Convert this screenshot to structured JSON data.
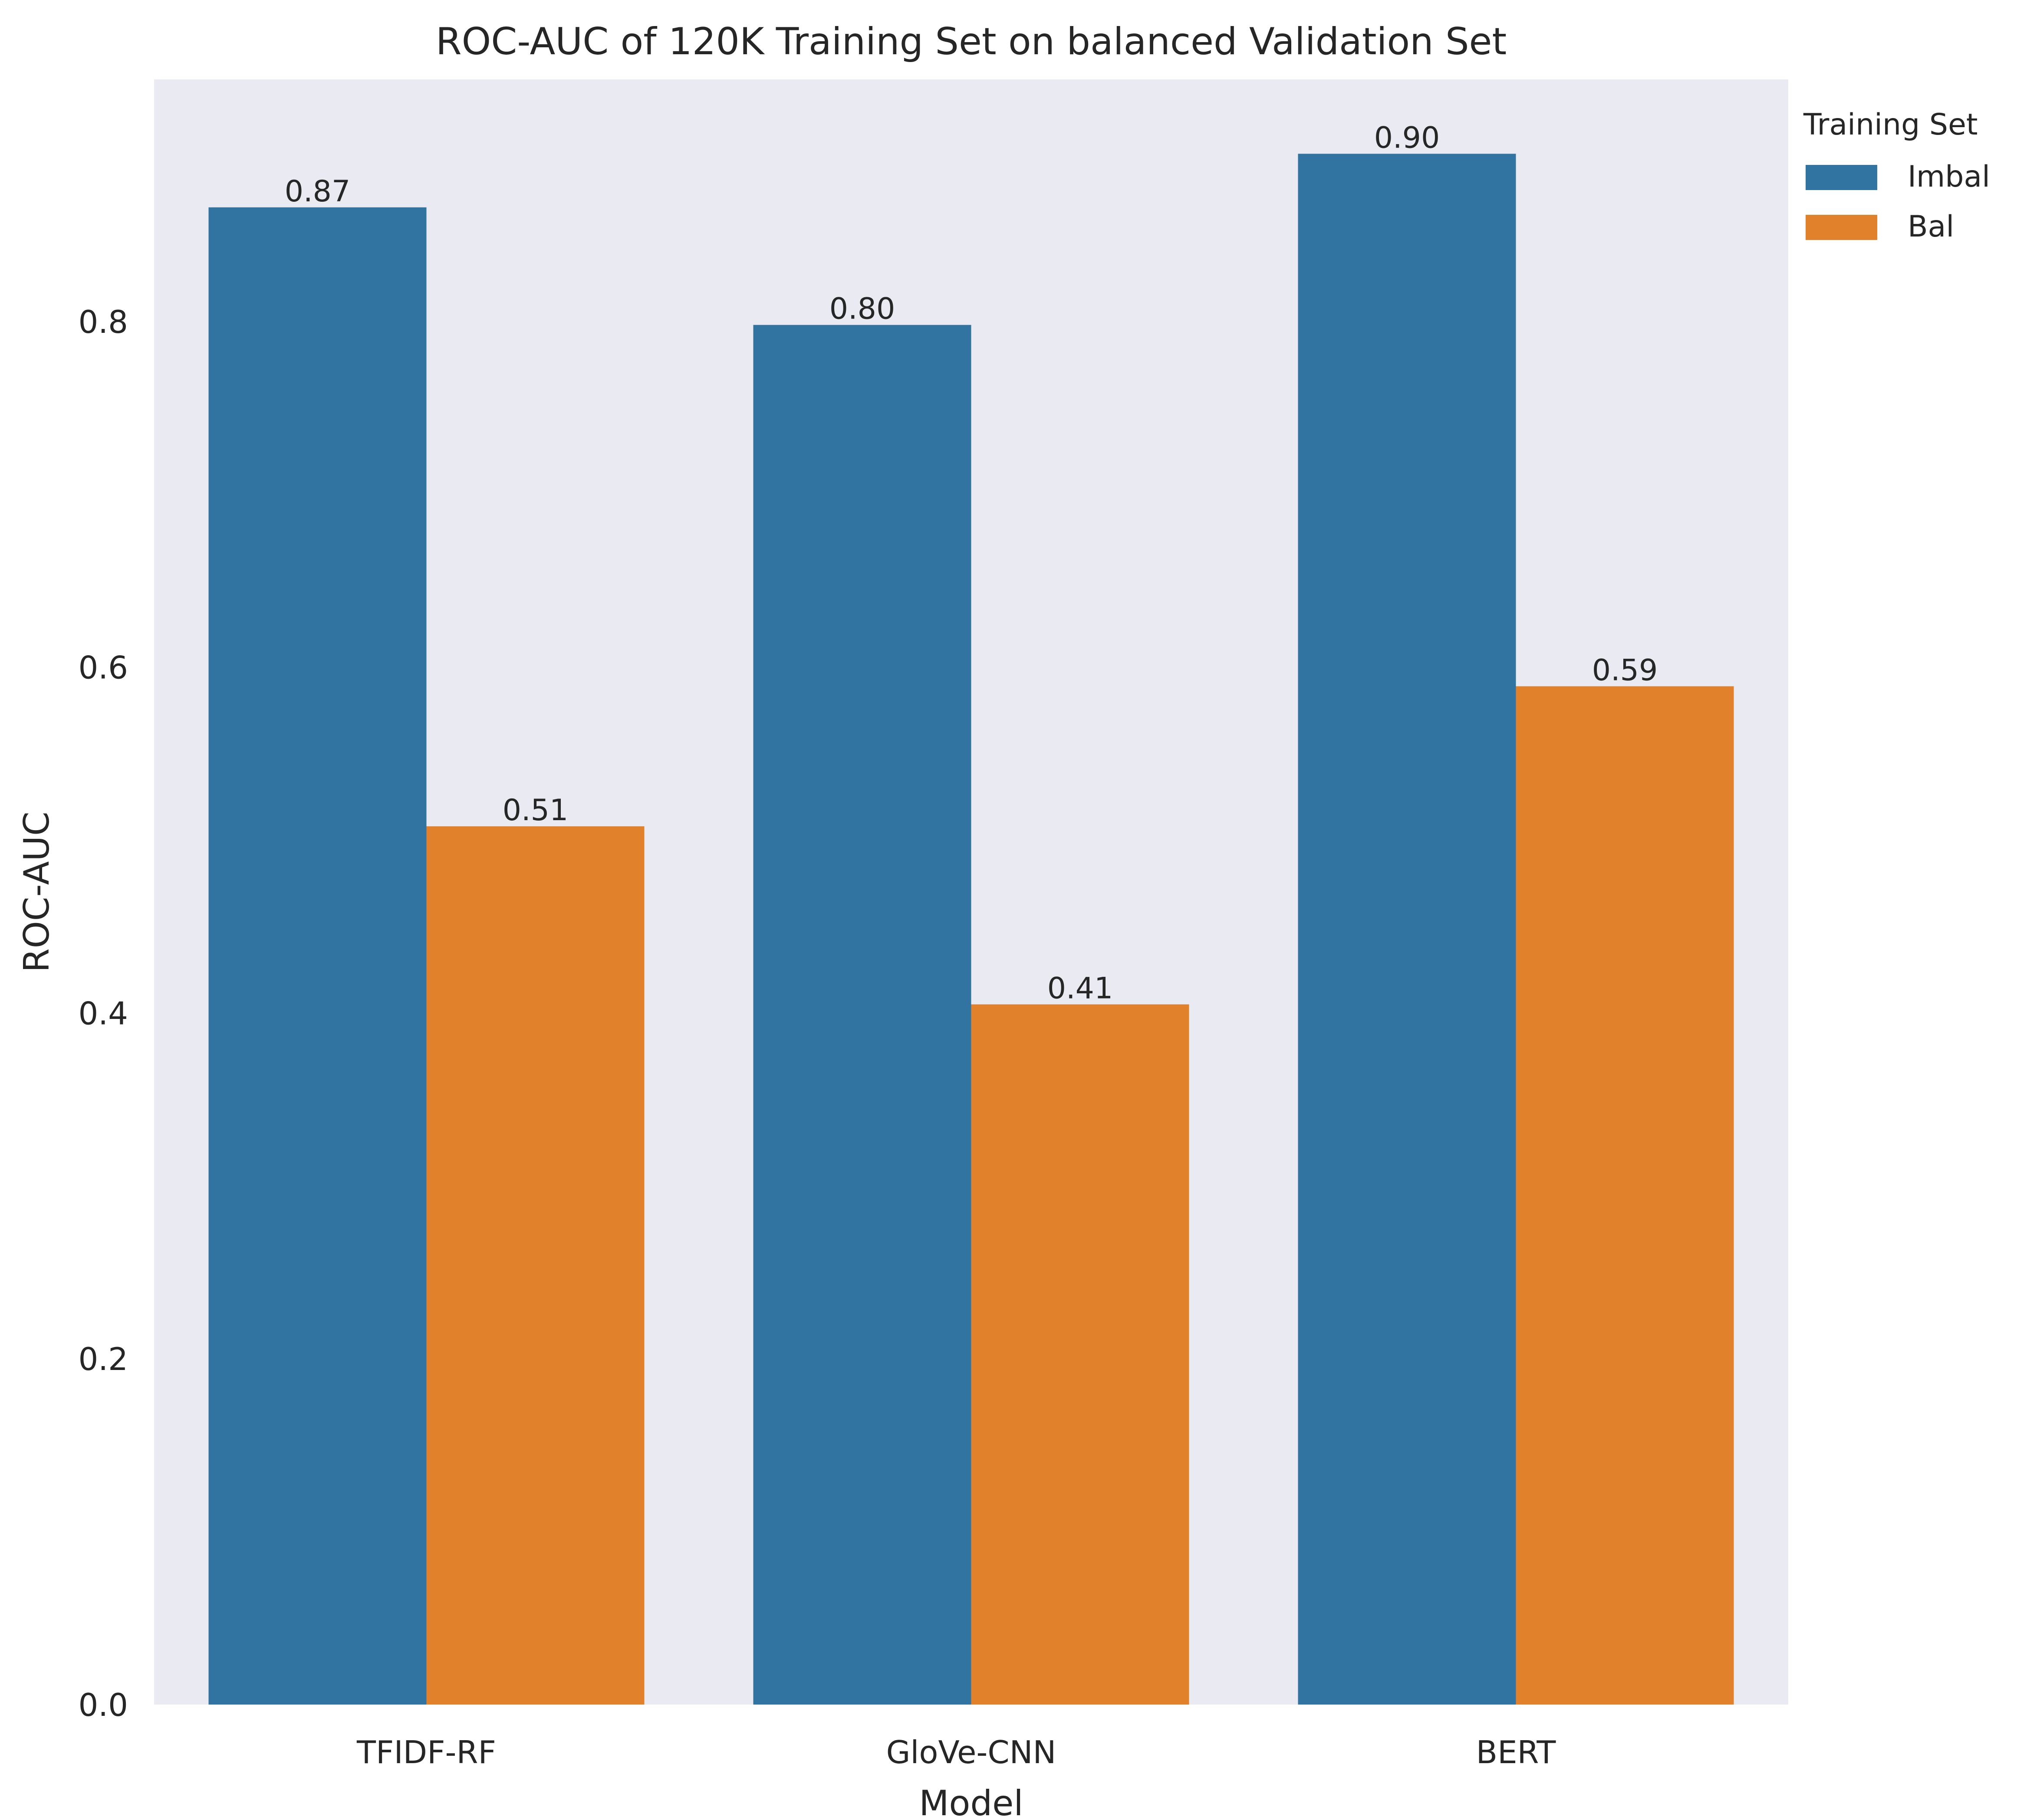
{
  "chart_data": {
    "type": "bar",
    "title": "ROC-AUC of 120K Training Set on balanced Validation Set",
    "xlabel": "Model",
    "ylabel": "ROC-AUC",
    "categories": [
      "TFIDF-RF",
      "GloVe-CNN",
      "BERT"
    ],
    "series": [
      {
        "name": "Imbal",
        "values": [
          0.866,
          0.798,
          0.897
        ],
        "labels": [
          "0.87",
          "0.80",
          "0.90"
        ],
        "color": "#3274a1"
      },
      {
        "name": "Bal",
        "values": [
          0.508,
          0.405,
          0.589
        ],
        "labels": [
          "0.51",
          "0.41",
          "0.59"
        ],
        "color": "#e1812c"
      }
    ],
    "ylim": [
      0,
      0.94
    ],
    "yticks": [
      "0.0",
      "0.2",
      "0.4",
      "0.6",
      "0.8"
    ],
    "grid": false,
    "background": "#eaeaf2",
    "legend": {
      "title": "Training Set",
      "placement": "outside-top-right"
    }
  }
}
